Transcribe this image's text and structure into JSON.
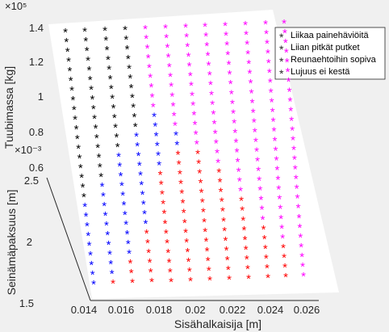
{
  "chart_data": {
    "type": "scatter",
    "view": "3d",
    "marker": "*",
    "axes": {
      "x": {
        "label": "Sisähalkaisija [m]",
        "lim": [
          0.013,
          0.026
        ],
        "ticks": [
          "0.014",
          "0.016",
          "0.018",
          "0.02",
          "0.022",
          "0.024",
          "0.026"
        ]
      },
      "y": {
        "label": "Seinämäpaksuus [m]",
        "lim": [
          1.5,
          2.5
        ],
        "exponent_label": "×10⁻³",
        "ticks": [
          "1.5",
          "2",
          "2.5"
        ]
      },
      "z": {
        "label": "Tuubimassa [kg]",
        "lim": [
          0.6,
          1.4
        ],
        "exponent_label": "×10⁵",
        "ticks": [
          "0.6",
          "0.8",
          "1",
          "1.2",
          "1.4"
        ]
      }
    },
    "legend": {
      "location": "top-right",
      "entries": [
        "Liikaa painehäviöitä",
        "Liian pitkät putket",
        "Reunaehtoihin sopiva",
        "Lujuus ei kestä"
      ]
    },
    "series": [
      {
        "name": "Liikaa painehäviöitä",
        "color": "#000000"
      },
      {
        "name": "Liian pitkät putket",
        "color": "#ff00ff"
      },
      {
        "name": "Reunaehtoihin sopiva",
        "color": "#0000ff"
      },
      {
        "name": "Lujuus ei kestä",
        "color": "#ff0000"
      }
    ],
    "grid": {
      "diameters": [
        0.014,
        0.015,
        0.016,
        0.017,
        0.018,
        0.019,
        0.02,
        0.021,
        0.022,
        0.023,
        0.024,
        0.025
      ],
      "rows": 27
    }
  }
}
